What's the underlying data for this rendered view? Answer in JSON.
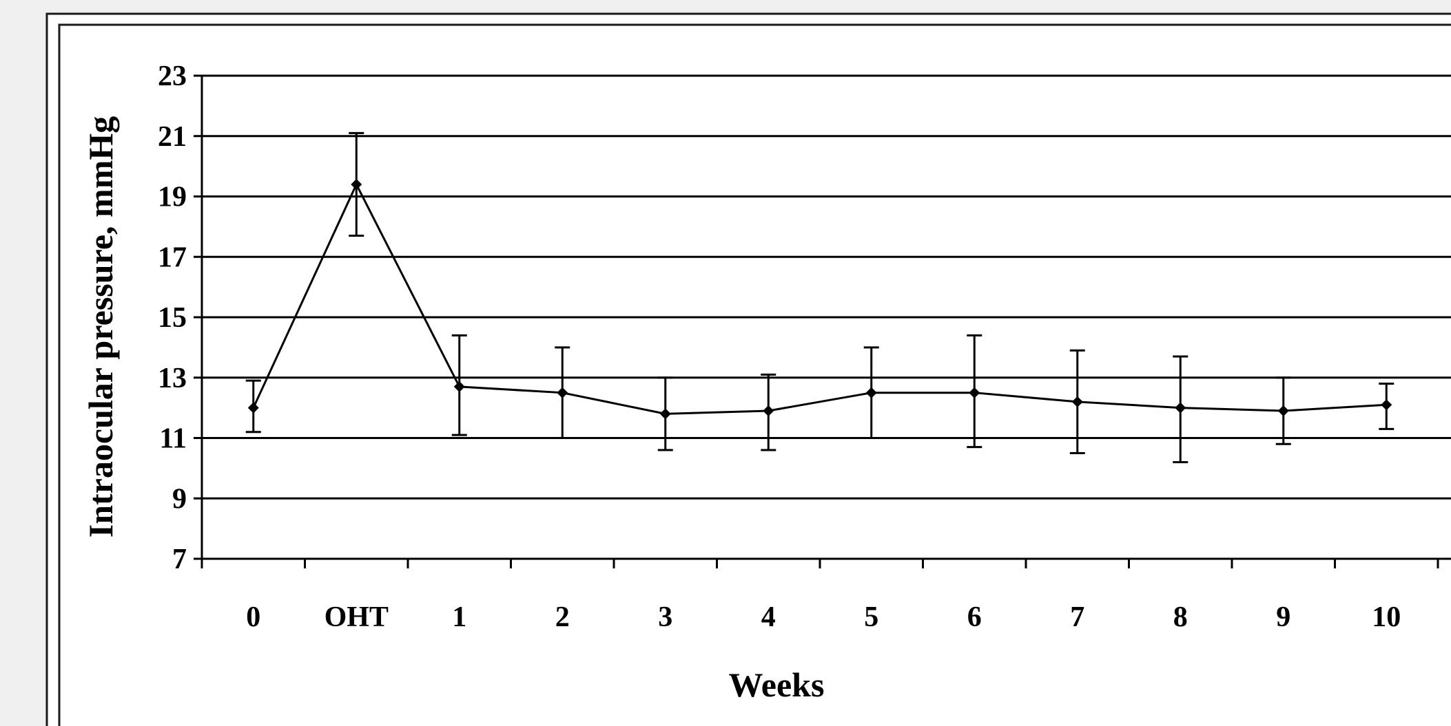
{
  "chart_data": {
    "type": "line",
    "title": "",
    "xlabel": "Weeks",
    "ylabel": "Intraocular pressure, mmHg",
    "categories": [
      "0",
      "OHT",
      "1",
      "2",
      "3",
      "4",
      "5",
      "6",
      "7",
      "8",
      "9",
      "10"
    ],
    "ylim": [
      7,
      23
    ],
    "yticks": [
      7,
      9,
      11,
      13,
      15,
      17,
      19,
      21,
      23
    ],
    "grid": true,
    "legend": "none",
    "series": [
      {
        "values": [
          12.0,
          19.4,
          12.7,
          12.5,
          11.8,
          11.9,
          12.5,
          12.5,
          12.2,
          12.0,
          11.9,
          12.1
        ],
        "error_upper": [
          12.9,
          21.1,
          14.4,
          14.0,
          13.0,
          13.1,
          14.0,
          14.4,
          13.9,
          13.7,
          13.0,
          12.8
        ],
        "error_lower": [
          11.2,
          17.7,
          11.1,
          11.0,
          10.6,
          10.6,
          11.0,
          10.7,
          10.5,
          10.2,
          10.8,
          11.3
        ],
        "color": "#000000",
        "marker": "diamond"
      }
    ]
  }
}
